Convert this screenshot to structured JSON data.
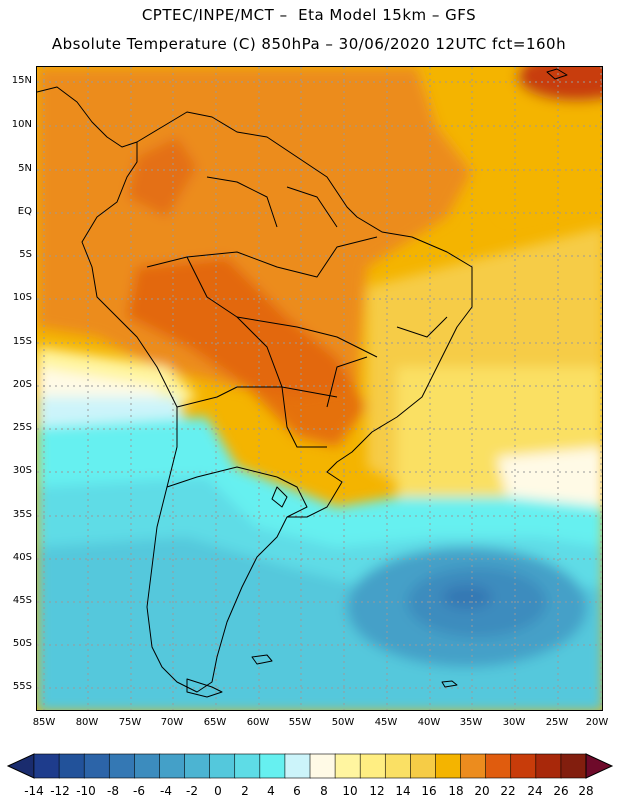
{
  "header": {
    "line1": "CPTEC/INPE/MCT –  Eta Model 15km – GFS",
    "line2": "Absolute Temperature (C) 850hPa – 30/06/2020 12UTC fct=160h"
  },
  "axes": {
    "lat_labels": [
      "15N",
      "10N",
      "5N",
      "EQ",
      "5S",
      "10S",
      "15S",
      "20S",
      "25S",
      "30S",
      "35S",
      "40S",
      "45S",
      "50S",
      "55S"
    ],
    "lon_labels": [
      "85W",
      "80W",
      "75W",
      "70W",
      "65W",
      "60W",
      "55W",
      "50W",
      "45W",
      "40W",
      "35W",
      "30W",
      "25W",
      "20W"
    ]
  },
  "colorbar": {
    "labels": [
      "-14",
      "-12",
      "-10",
      "-8",
      "-6",
      "-4",
      "-2",
      "0",
      "2",
      "4",
      "6",
      "8",
      "10",
      "12",
      "14",
      "16",
      "18",
      "20",
      "22",
      "24",
      "26",
      "28"
    ],
    "colors": [
      "#1e3c8c",
      "#22529a",
      "#2c64a8",
      "#3478b4",
      "#3c8cbe",
      "#44a0c8",
      "#4cb4d2",
      "#54c8dc",
      "#5edce6",
      "#66f0f0",
      "#ccf4fa",
      "#fffae6",
      "#fff5a0",
      "#ffee82",
      "#fae064",
      "#f6cc46",
      "#f4b400",
      "#ec8c1e",
      "#e05c0e",
      "#c83c0a",
      "#a8280a",
      "#821e0e"
    ],
    "arrow_low": "#1a2c6e",
    "arrow_high": "#6e0a2a"
  }
}
